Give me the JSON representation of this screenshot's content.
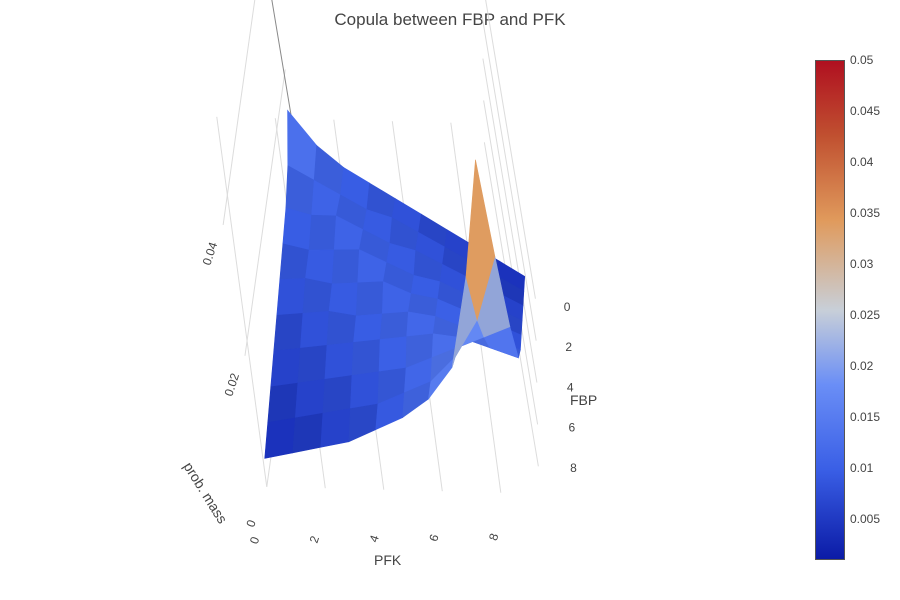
{
  "chart_data": {
    "type": "surface",
    "title": "Copula between FBP and PFK",
    "xlabel": "PFK",
    "ylabel": "FBP",
    "zlabel": "prob. mass",
    "x_ticks": [
      "0",
      "2",
      "4",
      "6",
      "8"
    ],
    "y_ticks": [
      "0",
      "2",
      "4",
      "6",
      "8"
    ],
    "z_ticks": [
      "0",
      "0.02",
      "0.04"
    ],
    "x": [
      0,
      1,
      2,
      3,
      4,
      5,
      6,
      7,
      8,
      9
    ],
    "y": [
      0,
      1,
      2,
      3,
      4,
      5,
      6,
      7,
      8,
      9
    ],
    "z": [
      [
        0.016,
        0.012,
        0.01,
        0.009,
        0.008,
        0.007,
        0.006,
        0.005,
        0.004,
        0.003
      ],
      [
        0.012,
        0.011,
        0.01,
        0.009,
        0.009,
        0.008,
        0.007,
        0.006,
        0.005,
        0.004
      ],
      [
        0.01,
        0.01,
        0.011,
        0.01,
        0.009,
        0.009,
        0.008,
        0.007,
        0.006,
        0.005
      ],
      [
        0.009,
        0.009,
        0.01,
        0.011,
        0.01,
        0.009,
        0.009,
        0.008,
        0.007,
        0.006
      ],
      [
        0.008,
        0.009,
        0.009,
        0.01,
        0.011,
        0.01,
        0.01,
        0.009,
        0.008,
        0.007
      ],
      [
        0.007,
        0.008,
        0.009,
        0.009,
        0.01,
        0.011,
        0.011,
        0.01,
        0.009,
        0.008
      ],
      [
        0.006,
        0.007,
        0.008,
        0.009,
        0.01,
        0.011,
        0.012,
        0.012,
        0.011,
        0.01
      ],
      [
        0.005,
        0.006,
        0.007,
        0.008,
        0.009,
        0.01,
        0.012,
        0.014,
        0.016,
        0.018
      ],
      [
        0.004,
        0.005,
        0.006,
        0.007,
        0.008,
        0.01,
        0.012,
        0.016,
        0.022,
        0.032
      ],
      [
        0.003,
        0.004,
        0.005,
        0.006,
        0.008,
        0.01,
        0.013,
        0.018,
        0.032,
        0.05
      ]
    ],
    "colorscale": {
      "min": 0.001,
      "max": 0.05,
      "ticks": [
        "0.05",
        "0.045",
        "0.04",
        "0.035",
        "0.03",
        "0.025",
        "0.02",
        "0.015",
        "0.01",
        "0.005"
      ],
      "tick_values": [
        0.05,
        0.045,
        0.04,
        0.035,
        0.03,
        0.025,
        0.02,
        0.015,
        0.01,
        0.005
      ],
      "colors": [
        "#0b1ba6",
        "#3a5fe6",
        "#6a8ef6",
        "#c8cfd8",
        "#e09a5c",
        "#c05030",
        "#b01020"
      ]
    }
  }
}
